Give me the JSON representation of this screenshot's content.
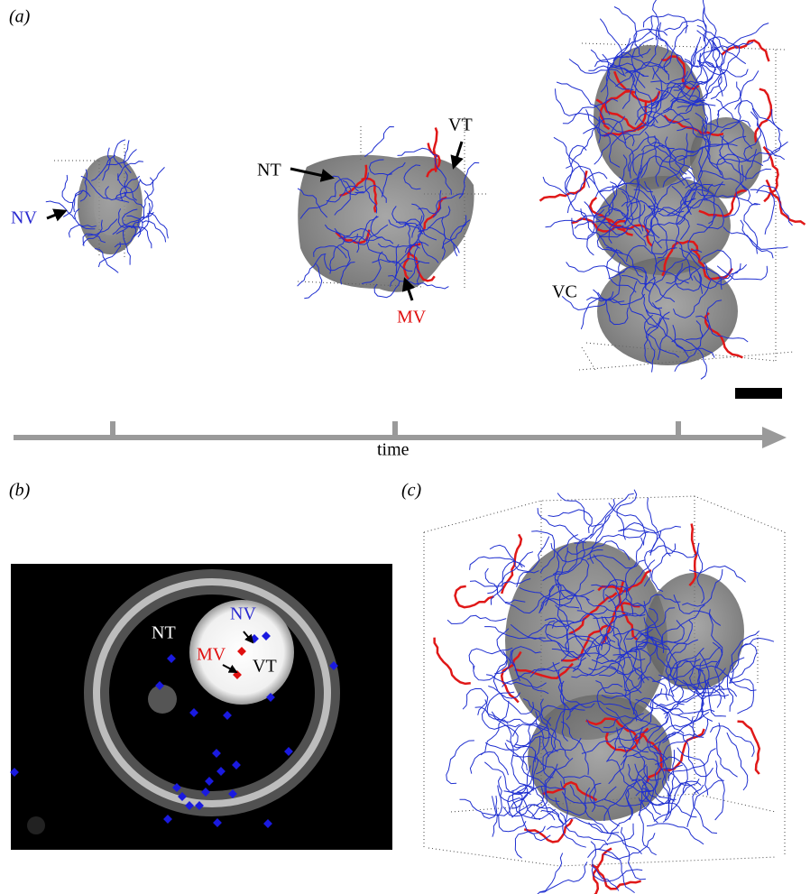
{
  "panels": {
    "a": {
      "label": "(a)",
      "annotations": {
        "nv": "NV",
        "nt": "NT",
        "vt": "VT",
        "mv": "MV",
        "vc": "VC"
      },
      "axis_label": "time"
    },
    "b": {
      "label": "(b)",
      "annotations": {
        "nt": "NT",
        "nv": "NV",
        "mv": "MV",
        "vt": "VT"
      }
    },
    "c": {
      "label": "(c)"
    }
  }
}
